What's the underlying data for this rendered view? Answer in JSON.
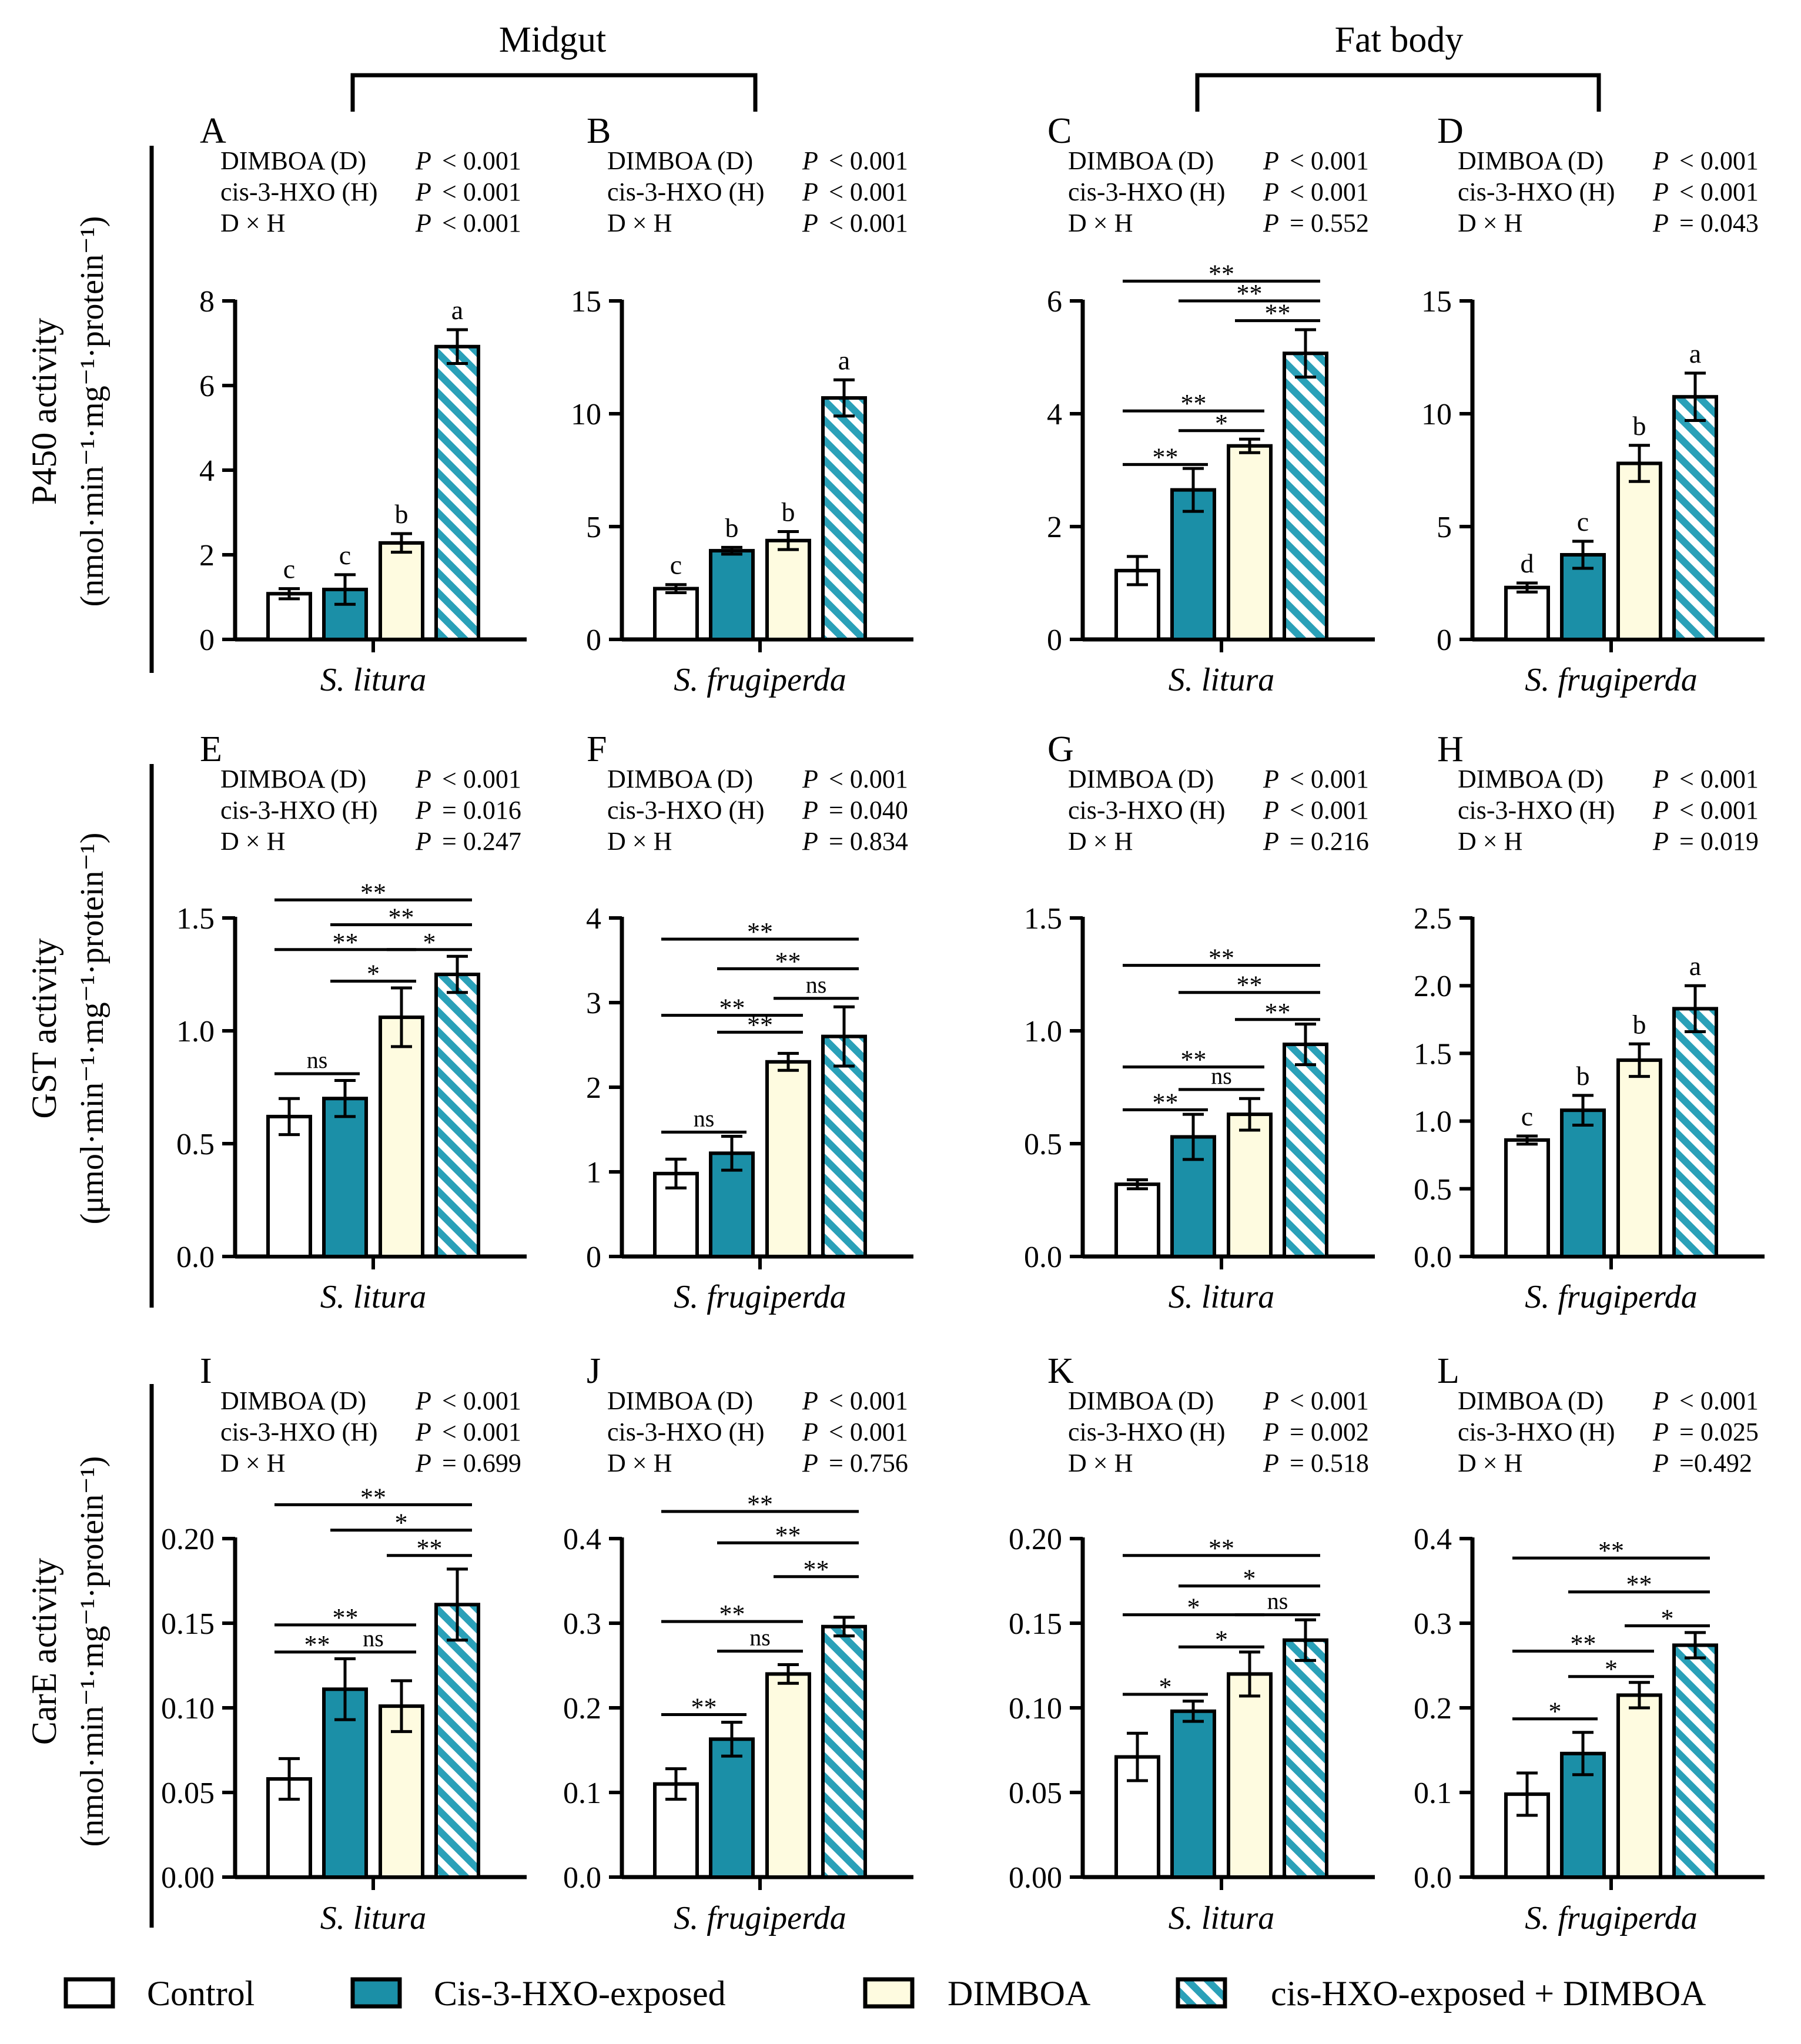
{
  "figure": {
    "sections": [
      {
        "id": "midgut",
        "label": "Midgut"
      },
      {
        "id": "fatbody",
        "label": "Fat body"
      }
    ],
    "row_labels": [
      {
        "id": "p450",
        "line1": "P450 activity",
        "line2": "(nmol·min⁻¹·mg⁻¹·protein⁻¹)"
      },
      {
        "id": "gst",
        "line1": "GST activity",
        "line2": "(μmol·min⁻¹·mg⁻¹·protein⁻¹)"
      },
      {
        "id": "care",
        "line1": "CarE activity",
        "line2": "(nmol·min⁻¹·mg⁻¹·protein⁻¹)"
      }
    ],
    "legend": [
      {
        "key": "control",
        "label": "Control",
        "fill": "#ffffff"
      },
      {
        "key": "hxo",
        "label": "Cis-3-HXO-exposed",
        "fill": "#1b8fa7"
      },
      {
        "key": "dimboa",
        "label": "DIMBOA",
        "fill": "#fefbe0"
      },
      {
        "key": "combo",
        "label": "cis-HXO-exposed + DIMBOA",
        "fill": "hatch"
      }
    ],
    "colors": {
      "hxo": "#1b8fa7",
      "dimboa": "#fefbe0",
      "control": "#ffffff",
      "hatch_bg": "#ffffff",
      "hatch_line": "#2aa0b8"
    }
  },
  "chart_data": [
    {
      "type": "bar",
      "panel": "A",
      "xlabel": "S. litura",
      "ylim": [
        0,
        8
      ],
      "yticks": [
        "0",
        "2",
        "4",
        "6",
        "8"
      ],
      "ytick_values": [
        0,
        2,
        4,
        6,
        8
      ],
      "stats": [
        [
          "DIMBOA (D)",
          "P",
          "< 0.001"
        ],
        [
          "cis-3-HXO (H)",
          "P",
          "< 0.001"
        ],
        [
          "D × H",
          "P",
          "< 0.001"
        ]
      ],
      "categories": [
        "Control",
        "Cis-3-HXO-exposed",
        "DIMBOA",
        "cis-HXO-exposed + DIMBOA"
      ],
      "values": [
        1.08,
        1.18,
        2.28,
        6.92
      ],
      "errors": [
        0.12,
        0.35,
        0.22,
        0.4
      ],
      "letters": [
        "c",
        "c",
        "b",
        "a"
      ],
      "comparisons": []
    },
    {
      "type": "bar",
      "panel": "B",
      "xlabel": "S. frugiperda",
      "ylim": [
        0,
        15
      ],
      "yticks": [
        "0",
        "5",
        "10",
        "15"
      ],
      "ytick_values": [
        0,
        5,
        10,
        15
      ],
      "stats": [
        [
          "DIMBOA (D)",
          "P",
          "< 0.001"
        ],
        [
          "cis-3-HXO (H)",
          "P",
          "< 0.001"
        ],
        [
          "D × H",
          "P",
          "< 0.001"
        ]
      ],
      "categories": [
        "Control",
        "Cis-3-HXO-exposed",
        "DIMBOA",
        "cis-HXO-exposed + DIMBOA"
      ],
      "values": [
        2.25,
        3.93,
        4.38,
        10.7
      ],
      "errors": [
        0.18,
        0.15,
        0.4,
        0.8
      ],
      "letters": [
        "c",
        "b",
        "b",
        "a"
      ],
      "comparisons": []
    },
    {
      "type": "bar",
      "panel": "C",
      "xlabel": "S. litura",
      "ylim": [
        0,
        6
      ],
      "yticks": [
        "0",
        "2",
        "4",
        "6"
      ],
      "ytick_values": [
        0,
        2,
        4,
        6
      ],
      "stats": [
        [
          "DIMBOA (D)",
          "P",
          "< 0.001"
        ],
        [
          "cis-3-HXO (H)",
          "P",
          "< 0.001"
        ],
        [
          "D × H",
          "P",
          "= 0.552"
        ]
      ],
      "categories": [
        "Control",
        "Cis-3-HXO-exposed",
        "DIMBOA",
        "cis-HXO-exposed + DIMBOA"
      ],
      "values": [
        1.22,
        2.65,
        3.43,
        5.07
      ],
      "errors": [
        0.25,
        0.38,
        0.12,
        0.42
      ],
      "letters": [
        "",
        "",
        "",
        ""
      ],
      "comparisons": [
        {
          "from": 0,
          "to": 1,
          "y": 3.1,
          "label": "**"
        },
        {
          "from": 1,
          "to": 2,
          "y": 3.7,
          "label": "*"
        },
        {
          "from": 0,
          "to": 2,
          "y": 4.05,
          "label": "**"
        },
        {
          "from": 2,
          "to": 3,
          "y": 5.65,
          "label": "**"
        },
        {
          "from": 1,
          "to": 3,
          "y": 6.0,
          "label": "**"
        },
        {
          "from": 0,
          "to": 3,
          "y": 6.35,
          "label": "**"
        }
      ]
    },
    {
      "type": "bar",
      "panel": "D",
      "xlabel": "S. frugiperda",
      "ylim": [
        0,
        15
      ],
      "yticks": [
        "0",
        "5",
        "10",
        "15"
      ],
      "ytick_values": [
        0,
        5,
        10,
        15
      ],
      "stats": [
        [
          "DIMBOA (D)",
          "P",
          "< 0.001"
        ],
        [
          "cis-3-HXO (H)",
          "P",
          "< 0.001"
        ],
        [
          "D × H",
          "P",
          "= 0.043"
        ]
      ],
      "categories": [
        "Control",
        "Cis-3-HXO-exposed",
        "DIMBOA",
        "cis-HXO-exposed + DIMBOA"
      ],
      "values": [
        2.3,
        3.75,
        7.8,
        10.75
      ],
      "errors": [
        0.2,
        0.6,
        0.8,
        1.05
      ],
      "letters": [
        "d",
        "c",
        "b",
        "a"
      ],
      "comparisons": []
    },
    {
      "type": "bar",
      "panel": "E",
      "xlabel": "S. litura",
      "ylim": [
        0,
        1.5
      ],
      "yticks": [
        "0.0",
        "0.5",
        "1.0",
        "1.5"
      ],
      "ytick_values": [
        0,
        0.5,
        1.0,
        1.5
      ],
      "stats": [
        [
          "DIMBOA (D)",
          "P",
          "< 0.001"
        ],
        [
          "cis-3-HXO (H)",
          "P",
          "= 0.016"
        ],
        [
          "D × H",
          "P",
          "= 0.247"
        ]
      ],
      "categories": [
        "Control",
        "Cis-3-HXO-exposed",
        "DIMBOA",
        "cis-HXO-exposed + DIMBOA"
      ],
      "values": [
        0.62,
        0.7,
        1.06,
        1.25
      ],
      "errors": [
        0.08,
        0.08,
        0.13,
        0.08
      ],
      "letters": [
        "",
        "",
        "",
        ""
      ],
      "comparisons": [
        {
          "from": 0,
          "to": 1,
          "y": 0.81,
          "label": "ns"
        },
        {
          "from": 1,
          "to": 2,
          "y": 1.22,
          "label": "*"
        },
        {
          "from": 0,
          "to": 2,
          "y": 1.36,
          "label": "**"
        },
        {
          "from": 2,
          "to": 3,
          "y": 1.36,
          "label": "*"
        },
        {
          "from": 1,
          "to": 3,
          "y": 1.47,
          "label": "**"
        },
        {
          "from": 0,
          "to": 3,
          "y": 1.58,
          "label": "**"
        }
      ]
    },
    {
      "type": "bar",
      "panel": "F",
      "xlabel": "S. frugiperda",
      "ylim": [
        0,
        4
      ],
      "yticks": [
        "0",
        "1",
        "2",
        "3",
        "4"
      ],
      "ytick_values": [
        0,
        1,
        2,
        3,
        4
      ],
      "stats": [
        [
          "DIMBOA (D)",
          "P",
          "< 0.001"
        ],
        [
          "cis-3-HXO (H)",
          "P",
          "= 0.040"
        ],
        [
          "D × H",
          "P",
          "= 0.834"
        ]
      ],
      "categories": [
        "Control",
        "Cis-3-HXO-exposed",
        "DIMBOA",
        "cis-HXO-exposed + DIMBOA"
      ],
      "values": [
        0.98,
        1.22,
        2.3,
        2.6
      ],
      "errors": [
        0.17,
        0.2,
        0.1,
        0.35
      ],
      "letters": [
        "",
        "",
        "",
        ""
      ],
      "comparisons": [
        {
          "from": 0,
          "to": 1,
          "y": 1.47,
          "label": "ns"
        },
        {
          "from": 1,
          "to": 2,
          "y": 2.65,
          "label": "**"
        },
        {
          "from": 0,
          "to": 2,
          "y": 2.85,
          "label": "**"
        },
        {
          "from": 2,
          "to": 3,
          "y": 3.05,
          "label": "ns"
        },
        {
          "from": 1,
          "to": 3,
          "y": 3.4,
          "label": "**"
        },
        {
          "from": 0,
          "to": 3,
          "y": 3.75,
          "label": "**"
        }
      ]
    },
    {
      "type": "bar",
      "panel": "G",
      "xlabel": "S. litura",
      "ylim": [
        0,
        1.5
      ],
      "yticks": [
        "0.0",
        "0.5",
        "1.0",
        "1.5"
      ],
      "ytick_values": [
        0,
        0.5,
        1.0,
        1.5
      ],
      "stats": [
        [
          "DIMBOA (D)",
          "P",
          "< 0.001"
        ],
        [
          "cis-3-HXO (H)",
          "P",
          "< 0.001"
        ],
        [
          "D × H",
          "P",
          "= 0.216"
        ]
      ],
      "categories": [
        "Control",
        "Cis-3-HXO-exposed",
        "DIMBOA",
        "cis-HXO-exposed + DIMBOA"
      ],
      "values": [
        0.32,
        0.53,
        0.63,
        0.94
      ],
      "errors": [
        0.02,
        0.1,
        0.07,
        0.09
      ],
      "letters": [
        "",
        "",
        "",
        ""
      ],
      "comparisons": [
        {
          "from": 0,
          "to": 1,
          "y": 0.65,
          "label": "**"
        },
        {
          "from": 1,
          "to": 2,
          "y": 0.74,
          "label": "ns"
        },
        {
          "from": 0,
          "to": 2,
          "y": 0.84,
          "label": "**"
        },
        {
          "from": 2,
          "to": 3,
          "y": 1.05,
          "label": "**"
        },
        {
          "from": 1,
          "to": 3,
          "y": 1.17,
          "label": "**"
        },
        {
          "from": 0,
          "to": 3,
          "y": 1.29,
          "label": "**"
        }
      ]
    },
    {
      "type": "bar",
      "panel": "H",
      "xlabel": "S. frugiperda",
      "ylim": [
        0,
        2.5
      ],
      "yticks": [
        "0.0",
        "0.5",
        "1.0",
        "1.5",
        "2.0",
        "2.5"
      ],
      "ytick_values": [
        0,
        0.5,
        1.0,
        1.5,
        2.0,
        2.5
      ],
      "stats": [
        [
          "DIMBOA (D)",
          "P",
          "< 0.001"
        ],
        [
          "cis-3-HXO (H)",
          "P",
          "< 0.001"
        ],
        [
          "D × H",
          "P",
          "= 0.019"
        ]
      ],
      "categories": [
        "Control",
        "Cis-3-HXO-exposed",
        "DIMBOA",
        "cis-HXO-exposed + DIMBOA"
      ],
      "values": [
        0.86,
        1.08,
        1.45,
        1.83
      ],
      "errors": [
        0.03,
        0.11,
        0.12,
        0.17
      ],
      "letters": [
        "c",
        "b",
        "b",
        "a"
      ],
      "comparisons": []
    },
    {
      "type": "bar",
      "panel": "I",
      "xlabel": "S. litura",
      "ylim": [
        0,
        0.2
      ],
      "yticks": [
        "0.00",
        "0.05",
        "0.10",
        "0.15",
        "0.20"
      ],
      "ytick_values": [
        0,
        0.05,
        0.1,
        0.15,
        0.2
      ],
      "stats": [
        [
          "DIMBOA (D)",
          "P",
          "< 0.001"
        ],
        [
          "cis-3-HXO (H)",
          "P",
          "< 0.001"
        ],
        [
          "D × H",
          "P",
          "= 0.699"
        ]
      ],
      "categories": [
        "Control",
        "Cis-3-HXO-exposed",
        "DIMBOA",
        "cis-HXO-exposed + DIMBOA"
      ],
      "values": [
        0.058,
        0.111,
        0.101,
        0.161
      ],
      "errors": [
        0.012,
        0.018,
        0.015,
        0.021
      ],
      "letters": [
        "",
        "",
        "",
        ""
      ],
      "comparisons": [
        {
          "from": 0,
          "to": 1,
          "y": 0.133,
          "label": "**"
        },
        {
          "from": 1,
          "to": 2,
          "y": 0.133,
          "label": "ns"
        },
        {
          "from": 0,
          "to": 2,
          "y": 0.149,
          "label": "**"
        },
        {
          "from": 2,
          "to": 3,
          "y": 0.19,
          "label": "**"
        },
        {
          "from": 1,
          "to": 3,
          "y": 0.205,
          "label": "*"
        },
        {
          "from": 0,
          "to": 3,
          "y": 0.22,
          "label": "**"
        }
      ]
    },
    {
      "type": "bar",
      "panel": "J",
      "xlabel": "S. frugiperda",
      "ylim": [
        0,
        0.4
      ],
      "yticks": [
        "0.0",
        "0.1",
        "0.2",
        "0.3",
        "0.4"
      ],
      "ytick_values": [
        0,
        0.1,
        0.2,
        0.3,
        0.4
      ],
      "stats": [
        [
          "DIMBOA (D)",
          "P",
          "< 0.001"
        ],
        [
          "cis-3-HXO (H)",
          "P",
          "< 0.001"
        ],
        [
          "D × H",
          "P",
          "= 0.756"
        ]
      ],
      "categories": [
        "Control",
        "Cis-3-HXO-exposed",
        "DIMBOA",
        "cis-HXO-exposed + DIMBOA"
      ],
      "values": [
        0.11,
        0.163,
        0.24,
        0.296
      ],
      "errors": [
        0.018,
        0.02,
        0.011,
        0.011
      ],
      "letters": [
        "",
        "",
        "",
        ""
      ],
      "comparisons": [
        {
          "from": 0,
          "to": 1,
          "y": 0.192,
          "label": "**"
        },
        {
          "from": 1,
          "to": 2,
          "y": 0.267,
          "label": "ns"
        },
        {
          "from": 0,
          "to": 2,
          "y": 0.302,
          "label": "**"
        },
        {
          "from": 2,
          "to": 3,
          "y": 0.355,
          "label": "**"
        },
        {
          "from": 1,
          "to": 3,
          "y": 0.395,
          "label": "**"
        },
        {
          "from": 0,
          "to": 3,
          "y": 0.432,
          "label": "**"
        }
      ]
    },
    {
      "type": "bar",
      "panel": "K",
      "xlabel": "S. litura",
      "ylim": [
        0,
        0.2
      ],
      "yticks": [
        "0.00",
        "0.05",
        "0.10",
        "0.15",
        "0.20"
      ],
      "ytick_values": [
        0,
        0.05,
        0.1,
        0.15,
        0.2
      ],
      "stats": [
        [
          "DIMBOA (D)",
          "P",
          "< 0.001"
        ],
        [
          "cis-3-HXO (H)",
          "P",
          "= 0.002"
        ],
        [
          "D × H",
          "P",
          "= 0.518"
        ]
      ],
      "categories": [
        "Control",
        "Cis-3-HXO-exposed",
        "DIMBOA",
        "cis-HXO-exposed + DIMBOA"
      ],
      "values": [
        0.071,
        0.098,
        0.12,
        0.14
      ],
      "errors": [
        0.014,
        0.006,
        0.013,
        0.012
      ],
      "letters": [
        "",
        "",
        "",
        ""
      ],
      "comparisons": [
        {
          "from": 0,
          "to": 1,
          "y": 0.108,
          "label": "*"
        },
        {
          "from": 1,
          "to": 2,
          "y": 0.136,
          "label": "*"
        },
        {
          "from": 0,
          "to": 2,
          "y": 0.155,
          "label": "*"
        },
        {
          "from": 2,
          "to": 3,
          "y": 0.155,
          "label": "ns"
        },
        {
          "from": 1,
          "to": 3,
          "y": 0.172,
          "label": "*"
        },
        {
          "from": 0,
          "to": 3,
          "y": 0.19,
          "label": "**"
        }
      ]
    },
    {
      "type": "bar",
      "panel": "L",
      "xlabel": "S. frugiperda",
      "ylim": [
        0,
        0.4
      ],
      "yticks": [
        "0.0",
        "0.1",
        "0.2",
        "0.3",
        "0.4"
      ],
      "ytick_values": [
        0,
        0.1,
        0.2,
        0.3,
        0.4
      ],
      "stats": [
        [
          "DIMBOA (D)",
          "P",
          "< 0.001"
        ],
        [
          "cis-3-HXO (H)",
          "P",
          "= 0.025"
        ],
        [
          "D × H",
          "P",
          "=0.492"
        ]
      ],
      "categories": [
        "Control",
        "Cis-3-HXO-exposed",
        "DIMBOA",
        "cis-HXO-exposed + DIMBOA"
      ],
      "values": [
        0.098,
        0.146,
        0.215,
        0.274
      ],
      "errors": [
        0.025,
        0.025,
        0.015,
        0.015
      ],
      "letters": [
        "",
        "",
        "",
        ""
      ],
      "comparisons": [
        {
          "from": 0,
          "to": 1,
          "y": 0.187,
          "label": "*"
        },
        {
          "from": 1,
          "to": 2,
          "y": 0.237,
          "label": "*"
        },
        {
          "from": 0,
          "to": 2,
          "y": 0.267,
          "label": "**"
        },
        {
          "from": 2,
          "to": 3,
          "y": 0.297,
          "label": "*"
        },
        {
          "from": 1,
          "to": 3,
          "y": 0.337,
          "label": "**"
        },
        {
          "from": 0,
          "to": 3,
          "y": 0.377,
          "label": "**"
        }
      ]
    }
  ]
}
